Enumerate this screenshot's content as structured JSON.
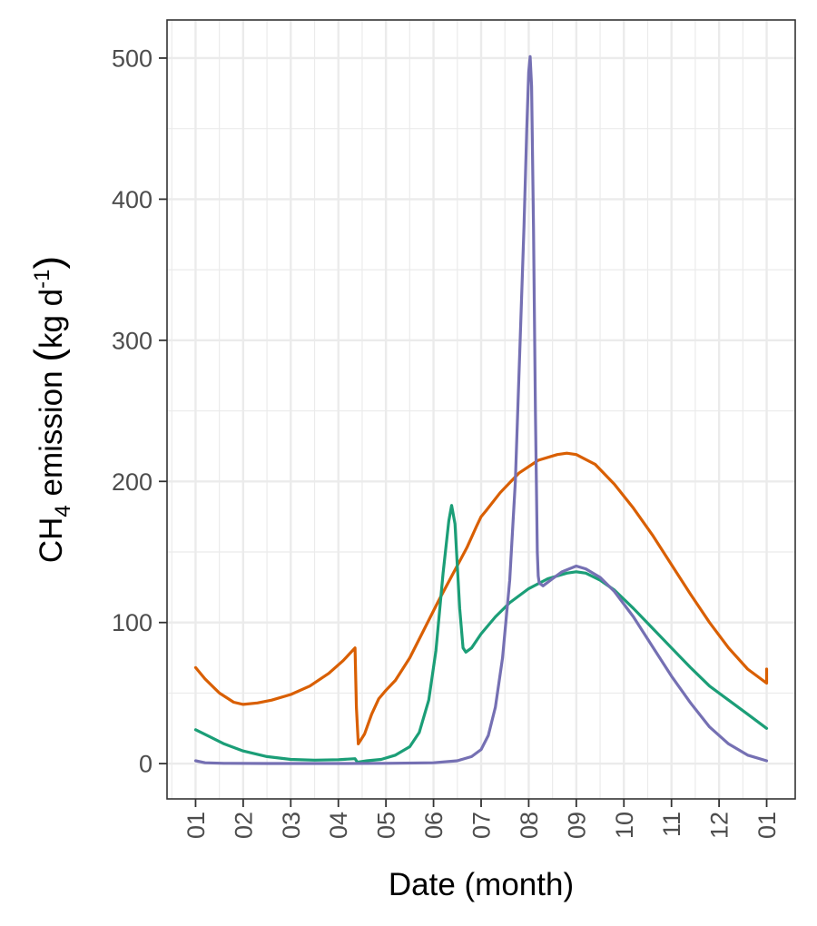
{
  "chart_data": {
    "type": "line",
    "xlabel": "Date (month)",
    "ylabel": {
      "prefix": "CH",
      "prefix_sub": "4",
      "middle": " emission ",
      "paren_open": "(",
      "unit": "kg d",
      "unit_sup": "-1",
      "paren_close": ")"
    },
    "xlim": [
      -0.6,
      12.6
    ],
    "ylim": [
      -25,
      527
    ],
    "x_ticks": [
      {
        "value": 0,
        "label": "01"
      },
      {
        "value": 1,
        "label": "02"
      },
      {
        "value": 2,
        "label": "03"
      },
      {
        "value": 3,
        "label": "04"
      },
      {
        "value": 4,
        "label": "05"
      },
      {
        "value": 5,
        "label": "06"
      },
      {
        "value": 6,
        "label": "07"
      },
      {
        "value": 7,
        "label": "08"
      },
      {
        "value": 8,
        "label": "09"
      },
      {
        "value": 9,
        "label": "10"
      },
      {
        "value": 10,
        "label": "11"
      },
      {
        "value": 11,
        "label": "12"
      },
      {
        "value": 12,
        "label": "01"
      }
    ],
    "y_ticks": [
      {
        "value": 0,
        "label": "0"
      },
      {
        "value": 100,
        "label": "100"
      },
      {
        "value": 200,
        "label": "200"
      },
      {
        "value": 300,
        "label": "300"
      },
      {
        "value": 400,
        "label": "400"
      },
      {
        "value": 500,
        "label": "500"
      }
    ],
    "grid": true,
    "legend": "none",
    "series": [
      {
        "color": "#d95f02",
        "points": [
          [
            0,
            68
          ],
          [
            0.2,
            60
          ],
          [
            0.5,
            50
          ],
          [
            0.8,
            43.5
          ],
          [
            1.0,
            42
          ],
          [
            1.3,
            43
          ],
          [
            1.6,
            45
          ],
          [
            2.0,
            49
          ],
          [
            2.4,
            55
          ],
          [
            2.8,
            64
          ],
          [
            3.1,
            73
          ],
          [
            3.35,
            82
          ],
          [
            3.38,
            40
          ],
          [
            3.42,
            14
          ],
          [
            3.55,
            21
          ],
          [
            3.7,
            35
          ],
          [
            3.85,
            46
          ],
          [
            4.0,
            52
          ],
          [
            4.2,
            59
          ],
          [
            4.5,
            75
          ],
          [
            4.8,
            95
          ],
          [
            5.1,
            115
          ],
          [
            5.4,
            134
          ],
          [
            5.7,
            153
          ],
          [
            5.9,
            168
          ],
          [
            6.0,
            175
          ],
          [
            6.1,
            179
          ],
          [
            6.4,
            192
          ],
          [
            6.8,
            206
          ],
          [
            7.2,
            215
          ],
          [
            7.6,
            219
          ],
          [
            7.8,
            220
          ],
          [
            8.0,
            219
          ],
          [
            8.4,
            212
          ],
          [
            8.8,
            198
          ],
          [
            9.2,
            181
          ],
          [
            9.6,
            162
          ],
          [
            10.0,
            141
          ],
          [
            10.4,
            120
          ],
          [
            10.8,
            100
          ],
          [
            11.2,
            82
          ],
          [
            11.6,
            67
          ],
          [
            12.0,
            57
          ],
          [
            12.0,
            67
          ]
        ]
      },
      {
        "color": "#1b9e77",
        "points": [
          [
            0,
            24
          ],
          [
            0.3,
            19
          ],
          [
            0.6,
            14
          ],
          [
            1.0,
            9
          ],
          [
            1.5,
            5
          ],
          [
            2.0,
            3
          ],
          [
            2.5,
            2.5
          ],
          [
            3.0,
            2.8
          ],
          [
            3.35,
            3.5
          ],
          [
            3.4,
            1
          ],
          [
            3.6,
            2
          ],
          [
            3.9,
            3
          ],
          [
            4.2,
            6
          ],
          [
            4.5,
            12
          ],
          [
            4.7,
            22
          ],
          [
            4.9,
            45
          ],
          [
            5.05,
            80
          ],
          [
            5.2,
            135
          ],
          [
            5.32,
            172
          ],
          [
            5.38,
            183
          ],
          [
            5.45,
            170
          ],
          [
            5.55,
            110
          ],
          [
            5.62,
            82
          ],
          [
            5.68,
            79
          ],
          [
            5.8,
            82
          ],
          [
            6.0,
            92
          ],
          [
            6.3,
            104
          ],
          [
            6.6,
            114
          ],
          [
            7.0,
            124
          ],
          [
            7.4,
            131
          ],
          [
            7.8,
            135
          ],
          [
            8.0,
            136
          ],
          [
            8.2,
            135
          ],
          [
            8.5,
            130
          ],
          [
            8.8,
            123
          ],
          [
            9.2,
            110
          ],
          [
            9.6,
            96
          ],
          [
            10.0,
            82
          ],
          [
            10.4,
            68
          ],
          [
            10.8,
            55
          ],
          [
            11.2,
            45
          ],
          [
            11.6,
            35
          ],
          [
            12.0,
            25
          ]
        ]
      },
      {
        "color": "#7570b3",
        "points": [
          [
            0,
            2
          ],
          [
            0.2,
            0.6
          ],
          [
            0.6,
            0.2
          ],
          [
            1.5,
            0.1
          ],
          [
            3.0,
            0.1
          ],
          [
            4.0,
            0.2
          ],
          [
            5.0,
            0.6
          ],
          [
            5.5,
            2
          ],
          [
            5.8,
            5
          ],
          [
            6.0,
            10
          ],
          [
            6.15,
            20
          ],
          [
            6.3,
            40
          ],
          [
            6.45,
            75
          ],
          [
            6.6,
            130
          ],
          [
            6.72,
            200
          ],
          [
            6.82,
            300
          ],
          [
            6.9,
            380
          ],
          [
            6.96,
            450
          ],
          [
            7.0,
            490
          ],
          [
            7.03,
            501
          ],
          [
            7.06,
            480
          ],
          [
            7.1,
            380
          ],
          [
            7.14,
            250
          ],
          [
            7.18,
            150
          ],
          [
            7.2,
            133
          ],
          [
            7.22,
            128
          ],
          [
            7.3,
            126
          ],
          [
            7.5,
            131
          ],
          [
            7.7,
            136
          ],
          [
            8.0,
            140
          ],
          [
            8.2,
            138
          ],
          [
            8.5,
            132
          ],
          [
            8.8,
            122
          ],
          [
            9.2,
            104
          ],
          [
            9.6,
            83
          ],
          [
            10.0,
            62
          ],
          [
            10.4,
            43
          ],
          [
            10.8,
            26
          ],
          [
            11.2,
            14
          ],
          [
            11.6,
            6
          ],
          [
            12.0,
            2
          ]
        ]
      }
    ]
  }
}
